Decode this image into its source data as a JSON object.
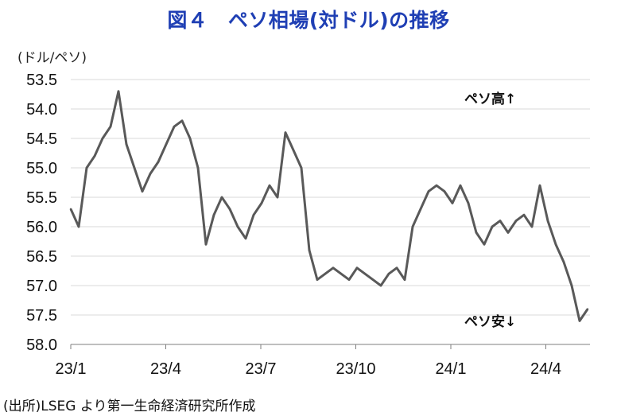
{
  "chart_data": {
    "type": "line",
    "title": "図４　ペソ相場(対ドル)の推移",
    "unit_label": "(ドル/ペソ)",
    "source": "(出所)LSEG より第一生命経済研究所作成",
    "y_inverted": true,
    "ylim": [
      53.5,
      58.0
    ],
    "y_ticks": [
      "53.5",
      "54.0",
      "54.5",
      "55.0",
      "55.5",
      "56.0",
      "56.5",
      "57.0",
      "57.5",
      "58.0"
    ],
    "x_ticks": [
      "23/1",
      "23/4",
      "23/7",
      "23/10",
      "24/1",
      "24/4"
    ],
    "annotations": {
      "top": "ペソ高↑",
      "bottom": "ペソ安↓"
    },
    "grid": "horizontal",
    "series_color": "#595959",
    "x": [
      "2023-01",
      "2023-01",
      "2023-01",
      "2023-01",
      "2023-02",
      "2023-02",
      "2023-02",
      "2023-02",
      "2023-03",
      "2023-03",
      "2023-03",
      "2023-03",
      "2023-04",
      "2023-04",
      "2023-04",
      "2023-04",
      "2023-05",
      "2023-05",
      "2023-05",
      "2023-05",
      "2023-06",
      "2023-06",
      "2023-06",
      "2023-06",
      "2023-07",
      "2023-07",
      "2023-07",
      "2023-07",
      "2023-08",
      "2023-08",
      "2023-08",
      "2023-08",
      "2023-09",
      "2023-09",
      "2023-09",
      "2023-09",
      "2023-10",
      "2023-10",
      "2023-10",
      "2023-10",
      "2023-11",
      "2023-11",
      "2023-11",
      "2023-11",
      "2023-12",
      "2023-12",
      "2023-12",
      "2023-12",
      "2024-01",
      "2024-01",
      "2024-01",
      "2024-01",
      "2024-02",
      "2024-02",
      "2024-02",
      "2024-02",
      "2024-03",
      "2024-03",
      "2024-03",
      "2024-03",
      "2024-04",
      "2024-04",
      "2024-04",
      "2024-04",
      "2024-05",
      "2024-05"
    ],
    "values": [
      55.7,
      56.0,
      55.0,
      54.8,
      54.5,
      54.3,
      53.7,
      54.6,
      55.0,
      55.4,
      55.1,
      54.9,
      54.6,
      54.3,
      54.2,
      54.5,
      55.0,
      56.3,
      55.8,
      55.5,
      55.7,
      56.0,
      56.2,
      55.8,
      55.6,
      55.3,
      55.5,
      54.4,
      54.7,
      55.0,
      56.4,
      56.9,
      56.8,
      56.7,
      56.8,
      56.9,
      56.7,
      56.8,
      56.9,
      57.0,
      56.8,
      56.7,
      56.9,
      56.0,
      55.7,
      55.4,
      55.3,
      55.4,
      55.6,
      55.3,
      55.6,
      56.1,
      56.3,
      56.0,
      55.9,
      56.1,
      55.9,
      55.8,
      56.0,
      55.3,
      55.9,
      56.3,
      56.6,
      57.0,
      57.6,
      57.4
    ]
  }
}
